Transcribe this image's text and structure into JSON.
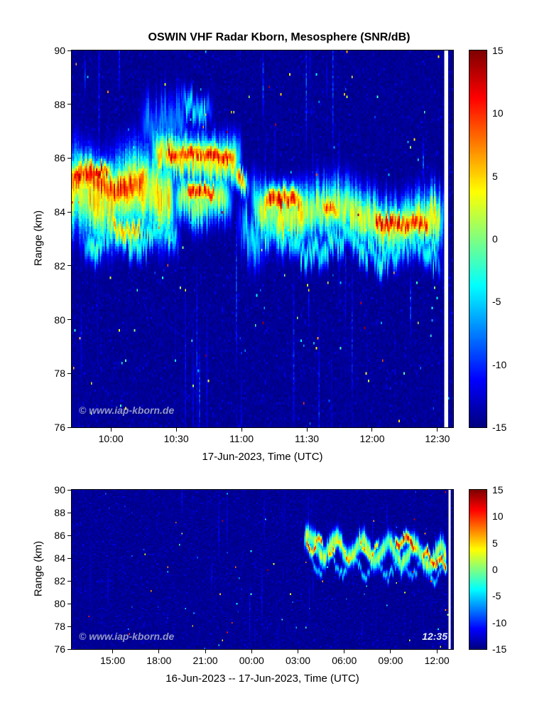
{
  "watermark_text": "© www.iap-kborn.de",
  "chart_data": [
    {
      "type": "heatmap",
      "title": "OSWIN VHF Radar Kborn, Mesosphere (SNR/dB)",
      "xlabel": "17-Jun-2023, Time (UTC)",
      "ylabel": "Range (km)",
      "watermark": "© www.iap-kborn.de",
      "x_unit": "hours UTC on 17-Jun-2023",
      "x_range": [
        9.7,
        12.62
      ],
      "y_range": [
        76,
        90
      ],
      "x_ticks": [
        {
          "v": 10.0,
          "label": "10:00"
        },
        {
          "v": 10.5,
          "label": "10:30"
        },
        {
          "v": 11.0,
          "label": "11:00"
        },
        {
          "v": 11.5,
          "label": "11:30"
        },
        {
          "v": 12.0,
          "label": "12:00"
        },
        {
          "v": 12.5,
          "label": "12:30"
        }
      ],
      "y_ticks": [
        90,
        88,
        86,
        84,
        82,
        80,
        78,
        76
      ],
      "colorbar": {
        "min": -15,
        "max": 15,
        "ticks": [
          15,
          10,
          5,
          0,
          -5,
          -10,
          -15
        ],
        "colormap": "jet",
        "unit": "SNR/dB"
      },
      "background_db": -15,
      "grid": [
        300,
        150
      ],
      "env": 0.08,
      "nan_gap": [
        12.553,
        12.585
      ],
      "noise": {
        "columns": 55,
        "col_strength": 7.5,
        "speckle": 0.004,
        "speckle_max": 22,
        "hot_speckle": 0.0004
      },
      "features": [
        {
          "t0": 9.7,
          "t1": 10.33,
          "rc0": 85.1,
          "rc1": 84.9,
          "h": 0.75,
          "a": 13.5,
          "w": 0.25,
          "p": 0.45,
          "rough": 0.35
        },
        {
          "t0": 9.7,
          "t1": 10.52,
          "rc0": 84.7,
          "rc1": 84.5,
          "h": 1.45,
          "a": 7.0,
          "w": 0.3,
          "p": 0.6,
          "rough": 0.5
        },
        {
          "t0": 9.7,
          "t1": 10.05,
          "rc0": 85.5,
          "rc1": 85.4,
          "h": 0.35,
          "a": 15,
          "w": 0.1,
          "p": 0.5,
          "rough": 0.3
        },
        {
          "t0": 9.95,
          "t1": 10.3,
          "rc0": 83.4,
          "rc1": 83.3,
          "h": 0.5,
          "a": 9,
          "w": 0.2,
          "p": 0.3,
          "rough": 0.6
        },
        {
          "t0": 9.75,
          "t1": 10.55,
          "rc0": 83.0,
          "rc1": 83.2,
          "h": 0.55,
          "a": 0,
          "w": 0.35,
          "p": 0.35,
          "rough": 0.8
        },
        {
          "t0": 10.36,
          "t1": 11.0,
          "rc0": 86.2,
          "rc1": 85.95,
          "h": 0.42,
          "a": 15,
          "w": 0.08,
          "p": 0.9,
          "rough": 0.25
        },
        {
          "t0": 10.28,
          "t1": 11.02,
          "rc0": 86.1,
          "rc1": 85.9,
          "h": 0.85,
          "a": 6.5,
          "w": 0.1,
          "p": 0.8,
          "rough": 0.5
        },
        {
          "t0": 10.9,
          "t1": 11.08,
          "rc0": 85.6,
          "rc1": 84.85,
          "h": 0.45,
          "a": 13,
          "w": 0,
          "p": 1,
          "rough": 0.3
        },
        {
          "t0": 10.52,
          "t1": 10.86,
          "rc0": 84.75,
          "rc1": 84.65,
          "h": 0.4,
          "a": 14.2,
          "w": 0.06,
          "p": 0.4,
          "rough": 0.3
        },
        {
          "t0": 10.45,
          "t1": 10.95,
          "rc0": 84.5,
          "rc1": 84.4,
          "h": 0.8,
          "a": 4,
          "w": 0.15,
          "p": 0.5,
          "rough": 0.6
        },
        {
          "t0": 10.2,
          "t1": 10.62,
          "rc0": 87.4,
          "rc1": 87.1,
          "h": 1.0,
          "a": -6,
          "w": 0.2,
          "p": 0.5,
          "rough": 0.9
        },
        {
          "t0": 10.5,
          "t1": 10.8,
          "rc0": 87.9,
          "rc1": 87.8,
          "h": 0.5,
          "a": -3,
          "w": 0.15,
          "p": 0.4,
          "rough": 0.8
        },
        {
          "t0": 11.05,
          "t1": 12.58,
          "rc0": 84.2,
          "rc1": 83.5,
          "h": 1.0,
          "a": 5.5,
          "w": 0.3,
          "p": 0.8,
          "rough": 0.6
        },
        {
          "t0": 11.12,
          "t1": 11.52,
          "rc0": 84.45,
          "rc1": 84.3,
          "h": 0.5,
          "a": 14.5,
          "w": 0.15,
          "p": 0.5,
          "rough": 0.35
        },
        {
          "t0": 11.55,
          "t1": 11.8,
          "rc0": 84.15,
          "rc1": 84.1,
          "h": 0.42,
          "a": 11.5,
          "w": 0.1,
          "p": 0.4,
          "rough": 0.4
        },
        {
          "t0": 11.95,
          "t1": 12.5,
          "rc0": 83.8,
          "rc1": 83.3,
          "h": 0.45,
          "a": 14,
          "w": 0.12,
          "p": 0.6,
          "rough": 0.35
        },
        {
          "t0": 11.1,
          "t1": 12.56,
          "rc0": 82.9,
          "rc1": 82.5,
          "h": 0.5,
          "a": -1,
          "w": 0.3,
          "p": 0.5,
          "rough": 0.9
        },
        {
          "t0": 10.95,
          "t1": 11.2,
          "rc0": 83.4,
          "rc1": 83.0,
          "h": 0.9,
          "a": -3,
          "w": 0.2,
          "p": 0.4,
          "rough": 0.9
        }
      ]
    },
    {
      "type": "heatmap",
      "title": "",
      "xlabel": "16-Jun-2023 -- 17-Jun-2023, Time (UTC)",
      "ylabel": "Range (km)",
      "watermark": "© www.iap-kborn.de",
      "clock": "12:35",
      "x_unit": "hours since 16-Jun-2023 00:00 UTC",
      "x_range": [
        12.35,
        37.05
      ],
      "y_range": [
        76,
        90
      ],
      "x_ticks": [
        {
          "v": 15,
          "label": "15:00"
        },
        {
          "v": 18,
          "label": "18:00"
        },
        {
          "v": 21,
          "label": "21:00"
        },
        {
          "v": 24,
          "label": "00:00"
        },
        {
          "v": 27,
          "label": "03:00"
        },
        {
          "v": 30,
          "label": "06:00"
        },
        {
          "v": 33,
          "label": "09:00"
        },
        {
          "v": 36,
          "label": "12:00"
        }
      ],
      "y_ticks": [
        90,
        88,
        86,
        84,
        82,
        80,
        78,
        76
      ],
      "colorbar": {
        "min": -15,
        "max": 15,
        "ticks": [
          15,
          10,
          5,
          0,
          -5,
          -10,
          -15
        ],
        "colormap": "jet",
        "unit": "SNR/dB"
      },
      "background_db": -15,
      "grid": [
        320,
        100
      ],
      "env": 0.15,
      "nan_gap": [
        36.72,
        36.86
      ],
      "noise": {
        "columns": 35,
        "col_strength": 5,
        "speckle": 0.0035,
        "speckle_max": 24,
        "hot_speckle": 0.0005
      },
      "features": [
        {
          "t0": 27.35,
          "t1": 36.7,
          "rc0": 85.2,
          "rc1": 84.0,
          "h": 0.9,
          "a": 4,
          "w": 0.9,
          "p": 1.7,
          "rough": 0.6
        },
        {
          "t0": 27.45,
          "t1": 28.7,
          "rc0": 85.4,
          "rc1": 84.9,
          "h": 0.45,
          "a": 12.5,
          "w": 0.7,
          "p": 1.1,
          "rough": 0.4
        },
        {
          "t0": 28.9,
          "t1": 30.6,
          "rc0": 84.8,
          "rc1": 84.4,
          "h": 0.4,
          "a": 10.5,
          "w": 0.65,
          "p": 1.4,
          "rough": 0.45
        },
        {
          "t0": 30.9,
          "t1": 32.3,
          "rc0": 84.6,
          "rc1": 84.8,
          "h": 0.4,
          "a": 9,
          "w": 0.5,
          "p": 1.2,
          "rough": 0.5
        },
        {
          "t0": 33.2,
          "t1": 34.8,
          "rc0": 85.7,
          "rc1": 85.1,
          "h": 0.55,
          "a": 14.5,
          "w": 0.55,
          "p": 1.1,
          "rough": 0.4
        },
        {
          "t0": 35.0,
          "t1": 36.7,
          "rc0": 84.3,
          "rc1": 83.3,
          "h": 0.5,
          "a": 14,
          "w": 0.45,
          "p": 0.9,
          "rough": 0.4
        },
        {
          "t0": 27.5,
          "t1": 36.6,
          "rc0": 83.6,
          "rc1": 82.8,
          "h": 0.4,
          "a": -4,
          "w": 0.8,
          "p": 1.5,
          "rough": 0.8
        }
      ]
    }
  ]
}
